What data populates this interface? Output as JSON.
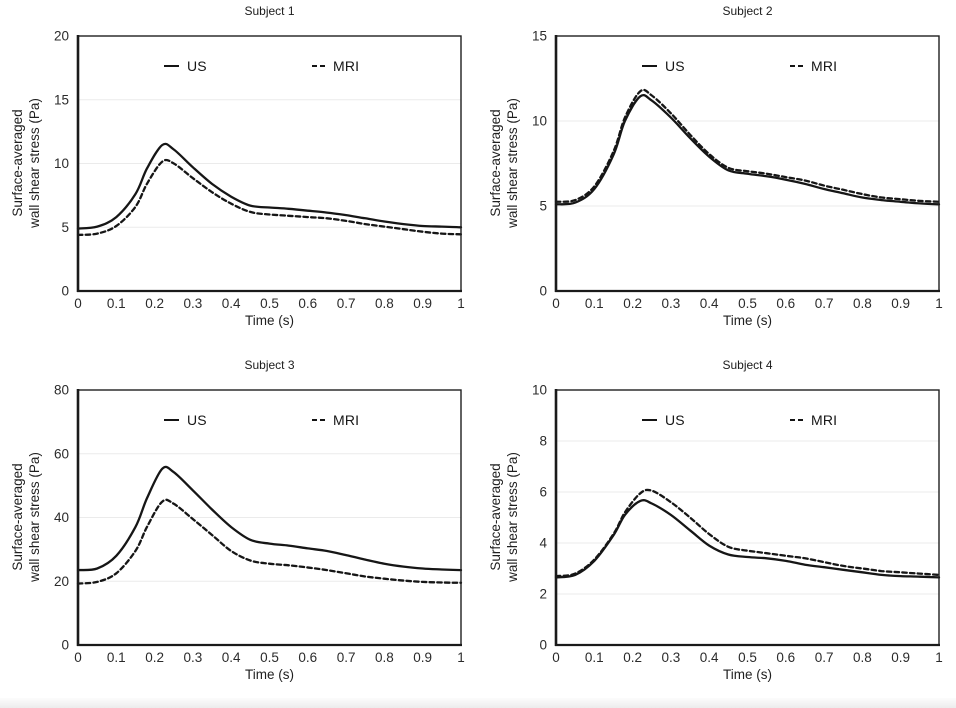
{
  "page": {
    "background": "#ffffff",
    "bottom_bar_gradient_top": "#fcfcfc",
    "bottom_bar_gradient_bottom": "#ececec"
  },
  "colors": {
    "line": "#161616",
    "grid": "#ebebeb",
    "frame": "#1f1f1f",
    "axis": "#1a1a1a",
    "tick_text": "#2b2b2b"
  },
  "chart_data": [
    {
      "type": "line",
      "title": "Subject 1",
      "xlabel": "Time (s)",
      "ylabel": "Surface-averaged wall shear stress (Pa)",
      "ylabel_line1": "Surface-averaged",
      "ylabel_line2": "wall shear stress (Pa)",
      "xlim": [
        0,
        1
      ],
      "ylim": [
        0,
        20
      ],
      "xticks": [
        "0",
        "0.1",
        "0.2",
        "0.3",
        "0.4",
        "0.5",
        "0.6",
        "0.7",
        "0.8",
        "0.9",
        "1"
      ],
      "yticks": [
        "0",
        "5",
        "10",
        "15",
        "20"
      ],
      "grid": "horizontal",
      "legend_position": "top-inside",
      "legend": [
        {
          "label": "US",
          "style": "solid"
        },
        {
          "label": "MRI",
          "style": "dashed"
        }
      ],
      "x": [
        0,
        0.05,
        0.1,
        0.15,
        0.18,
        0.22,
        0.25,
        0.3,
        0.35,
        0.4,
        0.45,
        0.5,
        0.55,
        0.6,
        0.65,
        0.7,
        0.75,
        0.8,
        0.85,
        0.9,
        0.95,
        1
      ],
      "series": [
        {
          "name": "US",
          "style": "solid",
          "values": [
            4.9,
            5.05,
            5.8,
            7.6,
            9.6,
            11.45,
            11.1,
            9.7,
            8.4,
            7.4,
            6.7,
            6.55,
            6.45,
            6.3,
            6.15,
            5.95,
            5.7,
            5.45,
            5.25,
            5.1,
            5.05,
            5.0
          ]
        },
        {
          "name": "MRI",
          "style": "dashed",
          "values": [
            4.4,
            4.5,
            5.1,
            6.6,
            8.4,
            10.15,
            10.0,
            8.85,
            7.75,
            6.85,
            6.2,
            6.0,
            5.9,
            5.8,
            5.7,
            5.5,
            5.25,
            5.05,
            4.85,
            4.65,
            4.5,
            4.45
          ]
        }
      ]
    },
    {
      "type": "line",
      "title": "Subject 2",
      "xlabel": "Time (s)",
      "ylabel": "Surface-averaged wall shear stress (Pa)",
      "ylabel_line1": "Surface-averaged",
      "ylabel_line2": "wall shear stress (Pa)",
      "xlim": [
        0,
        1
      ],
      "ylim": [
        0,
        15
      ],
      "xticks": [
        "0",
        "0.1",
        "0.2",
        "0.3",
        "0.4",
        "0.5",
        "0.6",
        "0.7",
        "0.8",
        "0.9",
        "1"
      ],
      "yticks": [
        "0",
        "5",
        "10",
        "15"
      ],
      "grid": "horizontal",
      "legend_position": "top-inside",
      "legend": [
        {
          "label": "US",
          "style": "solid"
        },
        {
          "label": "MRI",
          "style": "dashed"
        }
      ],
      "x": [
        0,
        0.05,
        0.1,
        0.15,
        0.18,
        0.22,
        0.25,
        0.3,
        0.35,
        0.4,
        0.45,
        0.5,
        0.55,
        0.6,
        0.65,
        0.7,
        0.75,
        0.8,
        0.85,
        0.9,
        0.95,
        1
      ],
      "series": [
        {
          "name": "US",
          "style": "solid",
          "values": [
            5.1,
            5.2,
            6.0,
            8.0,
            10.0,
            11.45,
            11.2,
            10.2,
            9.0,
            7.9,
            7.1,
            6.9,
            6.75,
            6.55,
            6.3,
            6.0,
            5.75,
            5.5,
            5.35,
            5.25,
            5.15,
            5.1
          ]
        },
        {
          "name": "MRI",
          "style": "dashed",
          "values": [
            5.25,
            5.35,
            6.15,
            8.2,
            10.2,
            11.75,
            11.5,
            10.45,
            9.2,
            8.05,
            7.25,
            7.05,
            6.9,
            6.7,
            6.5,
            6.2,
            5.95,
            5.7,
            5.5,
            5.4,
            5.3,
            5.25
          ]
        }
      ]
    },
    {
      "type": "line",
      "title": "Subject 3",
      "xlabel": "Time (s)",
      "ylabel": "Surface-averaged wall shear stress (Pa)",
      "ylabel_line1": "Surface-averaged",
      "ylabel_line2": "wall shear stress (Pa)",
      "xlim": [
        0,
        1
      ],
      "ylim": [
        0,
        80
      ],
      "xticks": [
        "0",
        "0.1",
        "0.2",
        "0.3",
        "0.4",
        "0.5",
        "0.6",
        "0.7",
        "0.8",
        "0.9",
        "1"
      ],
      "yticks": [
        "0",
        "20",
        "40",
        "60",
        "80"
      ],
      "grid": "horizontal",
      "legend_position": "top-inside",
      "legend": [
        {
          "label": "US",
          "style": "solid"
        },
        {
          "label": "MRI",
          "style": "dashed"
        }
      ],
      "x": [
        0,
        0.05,
        0.1,
        0.15,
        0.18,
        0.22,
        0.25,
        0.3,
        0.35,
        0.4,
        0.45,
        0.5,
        0.55,
        0.6,
        0.65,
        0.7,
        0.75,
        0.8,
        0.85,
        0.9,
        0.95,
        1
      ],
      "series": [
        {
          "name": "US",
          "style": "solid",
          "values": [
            23.5,
            24.0,
            28.0,
            37.0,
            46.0,
            55.3,
            54.2,
            48.5,
            42.5,
            37.0,
            33.0,
            31.8,
            31.2,
            30.3,
            29.5,
            28.2,
            26.8,
            25.5,
            24.6,
            24.0,
            23.7,
            23.5
          ]
        },
        {
          "name": "MRI",
          "style": "dashed",
          "values": [
            19.3,
            19.8,
            22.5,
            29.5,
            37.0,
            45.0,
            44.3,
            39.5,
            34.5,
            29.5,
            26.5,
            25.5,
            25.0,
            24.3,
            23.5,
            22.5,
            21.5,
            20.8,
            20.2,
            19.8,
            19.6,
            19.5
          ]
        }
      ]
    },
    {
      "type": "line",
      "title": "Subject 4",
      "xlabel": "Time (s)",
      "ylabel": "Surface-averaged wall shear stress (Pa)",
      "ylabel_line1": "Surface-averaged",
      "ylabel_line2": "wall shear stress (Pa)",
      "xlim": [
        0,
        1
      ],
      "ylim": [
        0,
        10
      ],
      "xticks": [
        "0",
        "0.1",
        "0.2",
        "0.3",
        "0.4",
        "0.5",
        "0.6",
        "0.7",
        "0.8",
        "0.9",
        "1"
      ],
      "yticks": [
        "0",
        "2",
        "4",
        "6",
        "8",
        "10"
      ],
      "grid": "horizontal",
      "legend_position": "top-inside",
      "legend": [
        {
          "label": "US",
          "style": "solid"
        },
        {
          "label": "MRI",
          "style": "dashed"
        }
      ],
      "x": [
        0,
        0.05,
        0.1,
        0.15,
        0.18,
        0.22,
        0.25,
        0.3,
        0.35,
        0.4,
        0.45,
        0.5,
        0.55,
        0.6,
        0.65,
        0.7,
        0.75,
        0.8,
        0.85,
        0.9,
        0.95,
        1
      ],
      "series": [
        {
          "name": "US",
          "style": "solid",
          "values": [
            2.65,
            2.75,
            3.3,
            4.3,
            5.1,
            5.65,
            5.55,
            5.1,
            4.5,
            3.9,
            3.55,
            3.45,
            3.4,
            3.3,
            3.15,
            3.05,
            2.95,
            2.85,
            2.75,
            2.7,
            2.68,
            2.65
          ]
        },
        {
          "name": "MRI",
          "style": "dashed",
          "values": [
            2.7,
            2.8,
            3.35,
            4.35,
            5.2,
            5.95,
            6.05,
            5.6,
            5.0,
            4.35,
            3.85,
            3.7,
            3.6,
            3.5,
            3.4,
            3.25,
            3.1,
            3.0,
            2.9,
            2.85,
            2.8,
            2.75
          ]
        }
      ]
    }
  ]
}
